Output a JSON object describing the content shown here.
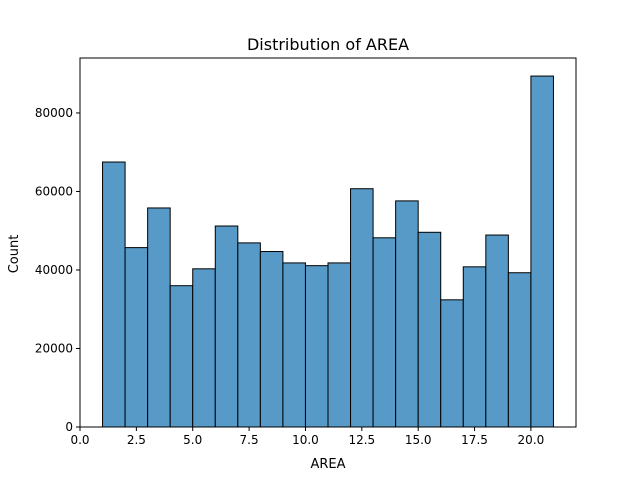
{
  "chart_data": {
    "type": "bar",
    "title": "Distribution of AREA",
    "xlabel": "AREA",
    "ylabel": "Count",
    "xlim": [
      0,
      22
    ],
    "ylim": [
      0,
      94000
    ],
    "bar_color": "#5799C7",
    "edge_color": "#000000",
    "grid": false,
    "x_ticks": [
      0.0,
      2.5,
      5.0,
      7.5,
      10.0,
      12.5,
      15.0,
      17.5,
      20.0
    ],
    "x_tick_labels": [
      "0.0",
      "2.5",
      "5.0",
      "7.5",
      "10.0",
      "12.5",
      "15.0",
      "17.5",
      "20.0"
    ],
    "y_ticks": [
      0,
      20000,
      40000,
      60000,
      80000
    ],
    "y_tick_labels": [
      "0",
      "20000",
      "40000",
      "60000",
      "80000"
    ],
    "bins": [
      {
        "x0": 1.0,
        "x1": 2.0,
        "count": 67500
      },
      {
        "x0": 2.0,
        "x1": 3.0,
        "count": 45700
      },
      {
        "x0": 3.0,
        "x1": 4.0,
        "count": 55800
      },
      {
        "x0": 4.0,
        "x1": 5.0,
        "count": 36000
      },
      {
        "x0": 5.0,
        "x1": 6.0,
        "count": 40300
      },
      {
        "x0": 6.0,
        "x1": 7.0,
        "count": 51200
      },
      {
        "x0": 7.0,
        "x1": 8.0,
        "count": 46900
      },
      {
        "x0": 8.0,
        "x1": 9.0,
        "count": 44700
      },
      {
        "x0": 9.0,
        "x1": 10.0,
        "count": 41800
      },
      {
        "x0": 10.0,
        "x1": 11.0,
        "count": 41100
      },
      {
        "x0": 11.0,
        "x1": 12.0,
        "count": 41800
      },
      {
        "x0": 12.0,
        "x1": 13.0,
        "count": 60700
      },
      {
        "x0": 13.0,
        "x1": 14.0,
        "count": 48200
      },
      {
        "x0": 14.0,
        "x1": 15.0,
        "count": 57600
      },
      {
        "x0": 15.0,
        "x1": 16.0,
        "count": 49600
      },
      {
        "x0": 16.0,
        "x1": 17.0,
        "count": 32400
      },
      {
        "x0": 17.0,
        "x1": 18.0,
        "count": 40800
      },
      {
        "x0": 18.0,
        "x1": 19.0,
        "count": 48900
      },
      {
        "x0": 19.0,
        "x1": 20.0,
        "count": 39300
      },
      {
        "x0": 20.0,
        "x1": 21.0,
        "count": 89400
      }
    ]
  }
}
